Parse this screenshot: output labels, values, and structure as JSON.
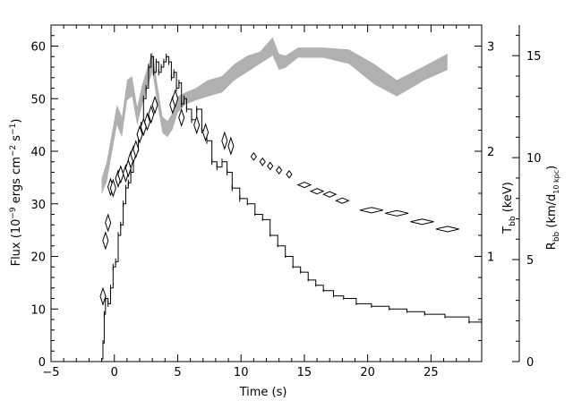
{
  "chart_data": {
    "type": "line",
    "title": "",
    "xlabel": "Time (s)",
    "ylabel_left": {
      "main": "Flux (10",
      "exp1": "−9",
      "mid": " ergs cm",
      "exp2": "−2",
      "mid2": " s",
      "exp3": "−1",
      "end": ")"
    },
    "ylabel_right1": {
      "main": "T",
      "sub": "bb",
      "end": " (keV)"
    },
    "ylabel_right2": {
      "main": "R",
      "sub": "bb",
      "mid": " (km/d",
      "sub2": "10 kpc",
      "end": ")"
    },
    "xlim": [
      -5,
      29
    ],
    "ylim_flux": [
      0,
      64
    ],
    "ylim_kT": [
      0,
      3.2
    ],
    "ylim_R": [
      0,
      16.5
    ],
    "xticks": [
      "−5",
      "0",
      "5",
      "10",
      "15",
      "20",
      "25"
    ],
    "xtick_values": [
      -5,
      0,
      5,
      10,
      15,
      20,
      25
    ],
    "yticks_flux": [
      "0",
      "10",
      "20",
      "30",
      "40",
      "50",
      "60"
    ],
    "ytick_values_flux": [
      0,
      10,
      20,
      30,
      40,
      50,
      60
    ],
    "yticks_kT": [
      "1",
      "2",
      "3"
    ],
    "ytick_values_kT": [
      1,
      2,
      3
    ],
    "yticks_R": [
      "0",
      "5",
      "10",
      "15"
    ],
    "ytick_values_R": [
      0,
      5,
      10,
      15
    ],
    "colors": {
      "flux": "#000000",
      "temperature": "#000000",
      "radius_band": "#b0b0b0"
    },
    "series": [
      {
        "kind": "flux_step",
        "points": [
          [
            -1.0,
            0.5
          ],
          [
            -0.9,
            3.5
          ],
          [
            -0.8,
            9
          ],
          [
            -0.7,
            12
          ],
          [
            -0.5,
            11
          ],
          [
            -0.3,
            14
          ],
          [
            -0.1,
            18
          ],
          [
            0.1,
            19
          ],
          [
            0.3,
            24
          ],
          [
            0.5,
            26
          ],
          [
            0.7,
            30
          ],
          [
            0.9,
            33
          ],
          [
            1.1,
            34
          ],
          [
            1.3,
            36
          ],
          [
            1.5,
            39
          ],
          [
            1.7,
            40
          ],
          [
            1.9,
            43
          ],
          [
            2.1,
            45
          ],
          [
            2.3,
            50
          ],
          [
            2.5,
            52
          ],
          [
            2.7,
            56
          ],
          [
            2.9,
            58
          ],
          [
            3.1,
            55
          ],
          [
            3.3,
            57
          ],
          [
            3.5,
            55
          ],
          [
            3.7,
            56
          ],
          [
            3.9,
            57
          ],
          [
            4.1,
            58
          ],
          [
            4.3,
            57
          ],
          [
            4.5,
            54
          ],
          [
            4.7,
            55
          ],
          [
            4.9,
            52
          ],
          [
            5.1,
            53
          ],
          [
            5.3,
            49
          ],
          [
            5.5,
            50
          ],
          [
            5.7,
            48
          ],
          [
            6.1,
            46
          ],
          [
            6.5,
            48
          ],
          [
            6.9,
            44
          ],
          [
            7.3,
            42
          ],
          [
            7.7,
            38
          ],
          [
            8.1,
            37
          ],
          [
            8.5,
            38
          ],
          [
            8.9,
            36
          ],
          [
            9.3,
            33
          ],
          [
            9.9,
            31
          ],
          [
            10.5,
            30
          ],
          [
            11.1,
            28
          ],
          [
            11.7,
            27
          ],
          [
            12.3,
            24
          ],
          [
            12.9,
            22
          ],
          [
            13.5,
            20
          ],
          [
            14.1,
            18
          ],
          [
            14.7,
            17
          ],
          [
            15.3,
            15.5
          ],
          [
            15.9,
            14.5
          ],
          [
            16.5,
            13.5
          ],
          [
            17.3,
            12.5
          ],
          [
            18.1,
            12
          ],
          [
            19.1,
            11
          ],
          [
            20.3,
            10.5
          ],
          [
            21.7,
            10
          ],
          [
            23.1,
            9.5
          ],
          [
            24.5,
            9
          ],
          [
            26.1,
            8.5
          ],
          [
            28.0,
            7.5
          ],
          [
            29.0,
            6.5
          ]
        ]
      },
      {
        "kind": "temperature_keV",
        "points": [
          [
            -0.9,
            0.62
          ],
          [
            -0.7,
            1.15
          ],
          [
            -0.5,
            1.32
          ],
          [
            -0.3,
            1.66
          ],
          [
            -0.1,
            1.65
          ],
          [
            0.3,
            1.74
          ],
          [
            0.5,
            1.78
          ],
          [
            0.9,
            1.79
          ],
          [
            1.1,
            1.84
          ],
          [
            1.3,
            1.92
          ],
          [
            1.5,
            1.97
          ],
          [
            1.7,
            2.02
          ],
          [
            2.0,
            2.16
          ],
          [
            2.3,
            2.23
          ],
          [
            2.6,
            2.28
          ],
          [
            2.9,
            2.35
          ],
          [
            3.2,
            2.44
          ],
          [
            4.6,
            2.44
          ],
          [
            4.8,
            2.5
          ],
          [
            5.3,
            2.32
          ],
          [
            6.5,
            2.25
          ],
          [
            7.2,
            2.18
          ],
          [
            8.7,
            2.1
          ],
          [
            9.2,
            2.05
          ],
          [
            11.0,
            1.95
          ],
          [
            11.7,
            1.9
          ],
          [
            12.3,
            1.86
          ],
          [
            13.0,
            1.82
          ],
          [
            13.8,
            1.78
          ],
          [
            15.0,
            1.68
          ],
          [
            16.0,
            1.62
          ],
          [
            17.0,
            1.59
          ],
          [
            18.0,
            1.53
          ],
          [
            20.3,
            1.44
          ],
          [
            22.3,
            1.41
          ],
          [
            24.3,
            1.33
          ],
          [
            26.3,
            1.26
          ]
        ]
      },
      {
        "kind": "radius_band_km",
        "points": [
          [
            -1.0,
            8.2,
            9.0
          ],
          [
            -0.6,
            8.8,
            9.8
          ],
          [
            -0.2,
            10.2,
            11.2
          ],
          [
            0.2,
            11.6,
            12.6
          ],
          [
            0.6,
            11.0,
            12.0
          ],
          [
            1.0,
            12.8,
            13.8
          ],
          [
            1.4,
            13.0,
            14.0
          ],
          [
            1.8,
            11.6,
            12.5
          ],
          [
            2.2,
            12.6,
            13.6
          ],
          [
            2.6,
            13.4,
            14.4
          ],
          [
            3.0,
            14.2,
            15.2
          ],
          [
            3.4,
            12.6,
            13.6
          ],
          [
            3.8,
            11.2,
            12.0
          ],
          [
            4.2,
            11.0,
            11.8
          ],
          [
            4.6,
            11.4,
            12.2
          ],
          [
            5.0,
            12.2,
            13.0
          ],
          [
            5.6,
            12.6,
            13.2
          ],
          [
            6.4,
            12.8,
            13.4
          ],
          [
            7.4,
            13.0,
            13.8
          ],
          [
            8.5,
            13.2,
            14.0
          ],
          [
            9.5,
            13.8,
            14.6
          ],
          [
            10.5,
            14.2,
            15.0
          ],
          [
            11.5,
            14.6,
            15.2
          ],
          [
            12.5,
            15.0,
            15.9
          ],
          [
            13.0,
            14.3,
            15.1
          ],
          [
            13.5,
            14.4,
            15.0
          ],
          [
            14.5,
            14.9,
            15.4
          ],
          [
            16.5,
            14.9,
            15.4
          ],
          [
            18.5,
            14.6,
            15.3
          ],
          [
            20.5,
            13.6,
            14.6
          ],
          [
            22.3,
            13.0,
            13.8
          ],
          [
            24.5,
            13.8,
            14.5
          ],
          [
            26.3,
            14.3,
            15.1
          ]
        ]
      }
    ]
  }
}
